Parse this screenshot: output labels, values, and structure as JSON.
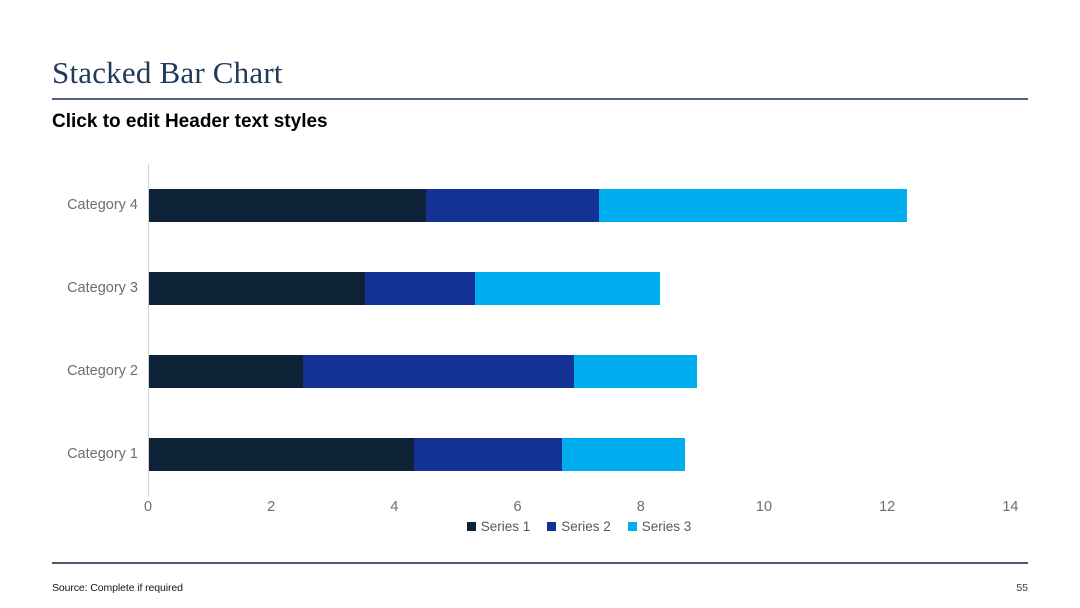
{
  "slide": {
    "title": "Stacked Bar Chart",
    "subtitle": "Click to edit Header text styles",
    "footer": {
      "source": "Source: Complete if required",
      "page_number": "55"
    }
  },
  "chart_data": {
    "type": "bar",
    "orientation": "horizontal",
    "stacked": true,
    "title": "",
    "xlabel": "",
    "ylabel": "",
    "xlim": [
      0,
      14
    ],
    "x_ticks": [
      0,
      2,
      4,
      6,
      8,
      10,
      12,
      14
    ],
    "grid": false,
    "legend_position": "bottom",
    "categories": [
      "Category 1",
      "Category 2",
      "Category 3",
      "Category 4"
    ],
    "row_order_top_to_bottom": [
      "Category 4",
      "Category 3",
      "Category 2",
      "Category 1"
    ],
    "series": [
      {
        "name": "Series 1",
        "color": "#0d2137",
        "values": [
          4.3,
          2.5,
          3.5,
          4.5
        ]
      },
      {
        "name": "Series 2",
        "color": "#143294",
        "values": [
          2.4,
          4.4,
          1.8,
          2.8
        ]
      },
      {
        "name": "Series 3",
        "color": "#00aeef",
        "values": [
          2.0,
          2.0,
          3.0,
          5.0
        ]
      }
    ],
    "totals_by_category": [
      8.7,
      8.9,
      8.3,
      12.3
    ]
  },
  "colors": {
    "title": "#203a5c",
    "rule": "#4c5b6e",
    "axis_line": "#d4d4d4",
    "axis_text": "#6e6e6e",
    "legend_text": "#595959"
  }
}
